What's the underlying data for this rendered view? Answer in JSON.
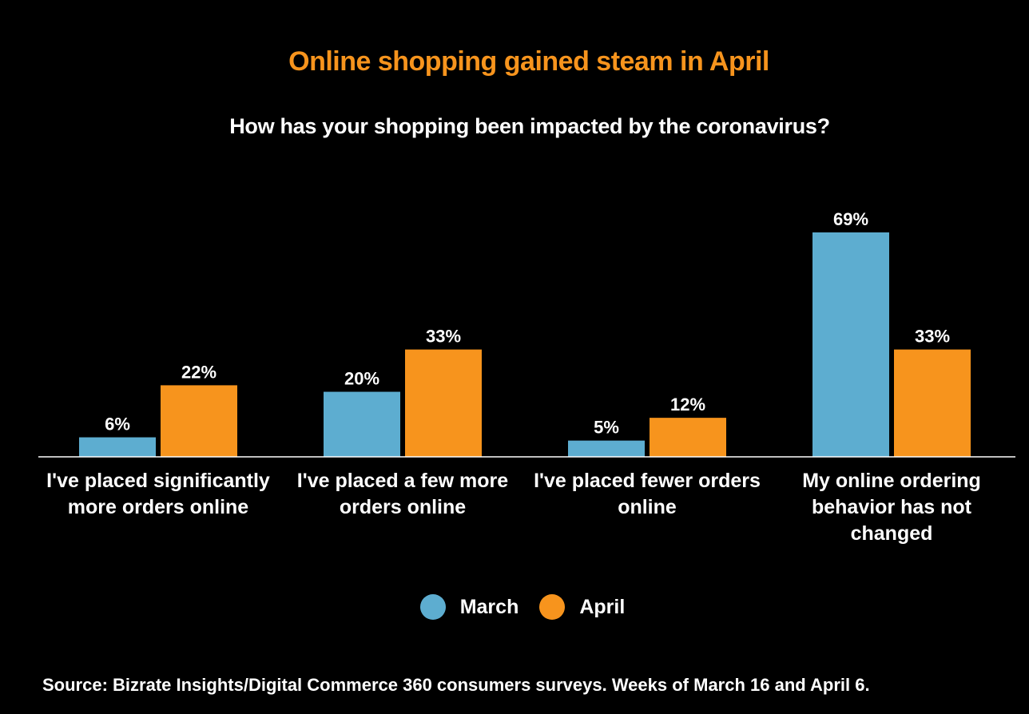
{
  "colors": {
    "background": "#000000",
    "title": "#F7941D",
    "text": "#FFFFFF",
    "march": "#5DADD0",
    "april": "#F7941D"
  },
  "chart_data": {
    "type": "bar",
    "title": "Online shopping gained steam  in April",
    "subtitle": "How has your shopping been impacted by the coronavirus?",
    "categories": [
      [
        "I've placed significantly",
        "more orders online"
      ],
      [
        "I've placed a few more",
        "orders online"
      ],
      [
        "I've placed fewer orders",
        "online"
      ],
      [
        "My online ordering",
        "behavior has not",
        "changed"
      ]
    ],
    "series": [
      {
        "name": "March",
        "color": "#5DADD0",
        "values": [
          6,
          20,
          5,
          69
        ],
        "labels": [
          "6%",
          "20%",
          "5%",
          "69%"
        ]
      },
      {
        "name": "April",
        "color": "#F7941D",
        "values": [
          22,
          33,
          12,
          33
        ],
        "labels": [
          "22%",
          "33%",
          "12%",
          "33%"
        ]
      }
    ],
    "ylim": [
      0,
      69
    ],
    "grid": false,
    "legend_position": "bottom",
    "source": "Source:  Bizrate Insights/Digital Commerce 360 consumers surveys. Weeks of March 16 and April 6."
  }
}
